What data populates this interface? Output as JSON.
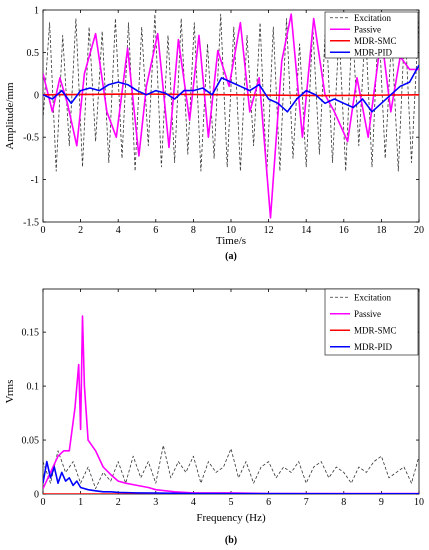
{
  "chart_data": [
    {
      "id": "a",
      "type": "line",
      "panel_label": "(a)",
      "xlabel": "Time/s",
      "ylabel": "Amplitude/mm",
      "xlim": [
        0,
        20
      ],
      "ylim": [
        -1.5,
        1
      ],
      "xticks": [
        "0",
        "2",
        "4",
        "6",
        "8",
        "10",
        "12",
        "14",
        "16",
        "18",
        "20"
      ],
      "yticks": [
        "1",
        "0.5",
        "0",
        "-0.5",
        "-1",
        "-1.5"
      ],
      "grid": false,
      "legend_position": "top-right",
      "colors": {
        "Excitation": "#333333",
        "Passive": "#ff00ff",
        "MDR-SMC": "#ff0000",
        "MDR-PID": "#0000ff"
      },
      "series": [
        {
          "name": "Excitation",
          "style": "dashed",
          "x": [
            0,
            0.35,
            0.7,
            1.05,
            1.4,
            1.75,
            2.1,
            2.45,
            2.8,
            3.15,
            3.5,
            3.85,
            4.2,
            4.55,
            4.9,
            5.25,
            5.6,
            5.95,
            6.3,
            6.65,
            7.0,
            7.35,
            7.7,
            8.05,
            8.4,
            8.75,
            9.1,
            9.45,
            9.8,
            10.15,
            10.5,
            10.85,
            11.2,
            11.55,
            11.9,
            12.25,
            12.6,
            12.95,
            13.3,
            13.65,
            14.0,
            14.35,
            14.7,
            15.05,
            15.4,
            15.75,
            16.1,
            16.45,
            16.8,
            17.15,
            17.5,
            17.85,
            18.2,
            18.55,
            18.9,
            19.25,
            19.6,
            20.0
          ],
          "values": [
            -0.3,
            0.85,
            -0.9,
            0.7,
            -0.6,
            0.9,
            -0.85,
            0.8,
            -0.55,
            0.75,
            -0.8,
            0.9,
            -0.75,
            0.85,
            -0.9,
            0.8,
            -0.6,
            0.95,
            -0.85,
            0.7,
            -0.8,
            0.9,
            -0.7,
            0.85,
            -0.9,
            0.6,
            -0.75,
            0.95,
            -0.85,
            0.8,
            -0.9,
            0.7,
            -0.6,
            0.85,
            -0.95,
            0.8,
            -0.9,
            0.9,
            -0.75,
            0.6,
            -0.85,
            0.8,
            -0.7,
            0.9,
            -0.8,
            0.75,
            -0.9,
            0.85,
            -0.6,
            0.8,
            -0.85,
            0.9,
            -0.75,
            0.7,
            -0.9,
            0.85,
            -0.8,
            0.95
          ]
        },
        {
          "name": "Passive",
          "style": "solid",
          "x": [
            0,
            0.5,
            0.9,
            1.3,
            1.8,
            2.2,
            2.8,
            3.4,
            3.9,
            4.5,
            5.1,
            5.5,
            6.1,
            6.7,
            7.2,
            7.8,
            8.3,
            8.8,
            9.3,
            9.9,
            10.5,
            11.0,
            11.5,
            12.1,
            12.7,
            13.2,
            13.8,
            14.4,
            15.0,
            15.5,
            16.2,
            16.7,
            17.3,
            18.0,
            18.5,
            19.0,
            19.5,
            20.0
          ],
          "values": [
            0.25,
            -0.2,
            0.2,
            -0.1,
            -0.6,
            0.25,
            0.72,
            -0.2,
            -0.5,
            0.55,
            -0.72,
            0.1,
            0.72,
            -0.62,
            0.65,
            -0.3,
            0.7,
            -0.5,
            0.52,
            0.1,
            0.85,
            -0.2,
            0.2,
            -1.45,
            0.4,
            0.95,
            -0.5,
            0.9,
            0.0,
            -0.2,
            -0.55,
            0.2,
            -0.5,
            0.7,
            -0.2,
            0.45,
            0.3,
            0.3
          ]
        },
        {
          "name": "MDR-SMC",
          "style": "solid",
          "x": [
            0,
            5,
            10,
            15,
            20
          ],
          "values": [
            0,
            0.01,
            0,
            -0.01,
            0
          ]
        },
        {
          "name": "MDR-PID",
          "style": "solid",
          "x": [
            0,
            0.5,
            1.0,
            1.5,
            2.0,
            2.5,
            3.0,
            3.5,
            4.0,
            4.5,
            5.0,
            5.5,
            6.0,
            6.5,
            7.0,
            7.5,
            8.0,
            8.5,
            9.0,
            9.5,
            10.0,
            10.5,
            11.0,
            11.5,
            12.0,
            12.5,
            13.0,
            13.5,
            14.0,
            14.5,
            15.0,
            15.5,
            16.0,
            16.5,
            17.0,
            17.5,
            18.0,
            18.5,
            19.0,
            19.5,
            20.0
          ],
          "values": [
            0,
            -0.05,
            0.05,
            -0.1,
            0.05,
            0.08,
            0.05,
            0.12,
            0.15,
            0.12,
            0.05,
            0.0,
            0.05,
            0.02,
            -0.05,
            0.05,
            0.05,
            0.08,
            0.0,
            0.2,
            0.15,
            0.1,
            0.05,
            0.12,
            -0.05,
            -0.1,
            -0.2,
            -0.05,
            0.05,
            0.0,
            -0.1,
            -0.05,
            -0.1,
            -0.15,
            -0.05,
            -0.2,
            -0.1,
            0.0,
            0.1,
            0.15,
            0.35
          ]
        }
      ]
    },
    {
      "id": "b",
      "type": "line",
      "panel_label": "(b)",
      "xlabel": "Frequency (Hz)",
      "ylabel": "Vrms",
      "xlim": [
        0,
        10
      ],
      "ylim": [
        0,
        0.19
      ],
      "xticks": [
        "0",
        "1",
        "2",
        "3",
        "4",
        "5",
        "6",
        "7",
        "8",
        "9",
        "10"
      ],
      "yticks": [
        "0.15",
        "0.1",
        "0.05",
        "0"
      ],
      "grid": false,
      "legend_position": "top-right",
      "colors": {
        "Excitation": "#333333",
        "Passive": "#ff00ff",
        "MDR-SMC": "#ff0000",
        "MDR-PID": "#0000ff"
      },
      "series": [
        {
          "name": "Excitation",
          "style": "dashed",
          "x": [
            0,
            0.2,
            0.4,
            0.6,
            0.8,
            1.0,
            1.2,
            1.4,
            1.6,
            1.8,
            2.0,
            2.2,
            2.4,
            2.6,
            2.8,
            3.0,
            3.2,
            3.4,
            3.6,
            3.8,
            4.0,
            4.2,
            4.4,
            4.6,
            4.8,
            5.0,
            5.2,
            5.4,
            5.6,
            5.8,
            6.0,
            6.2,
            6.4,
            6.6,
            6.8,
            7.0,
            7.2,
            7.4,
            7.6,
            7.8,
            8.0,
            8.2,
            8.4,
            8.6,
            8.8,
            9.0,
            9.2,
            9.4,
            9.6,
            9.8,
            10.0
          ],
          "values": [
            0.03,
            0.01,
            0.04,
            0.02,
            0.03,
            0.01,
            0.025,
            0.005,
            0.02,
            0.012,
            0.03,
            0.01,
            0.035,
            0.015,
            0.03,
            0.01,
            0.045,
            0.015,
            0.03,
            0.02,
            0.035,
            0.01,
            0.03,
            0.02,
            0.025,
            0.042,
            0.015,
            0.03,
            0.01,
            0.025,
            0.03,
            0.015,
            0.025,
            0.02,
            0.03,
            0.01,
            0.025,
            0.03,
            0.015,
            0.025,
            0.02,
            0.01,
            0.025,
            0.02,
            0.03,
            0.035,
            0.015,
            0.02,
            0.025,
            0.01,
            0.035
          ]
        },
        {
          "name": "Passive",
          "style": "solid",
          "x": [
            0,
            0.2,
            0.4,
            0.55,
            0.7,
            0.85,
            0.95,
            1.0,
            1.05,
            1.1,
            1.2,
            1.4,
            1.6,
            1.8,
            2.0,
            2.2,
            2.5,
            2.8,
            3.0,
            3.5,
            4.0,
            5.0,
            6.0,
            8.0,
            10.0
          ],
          "values": [
            0.005,
            0.02,
            0.035,
            0.04,
            0.04,
            0.08,
            0.12,
            0.06,
            0.165,
            0.1,
            0.05,
            0.04,
            0.025,
            0.018,
            0.012,
            0.01,
            0.008,
            0.006,
            0.004,
            0.002,
            0.001,
            0.001,
            0.0005,
            0.0005,
            0.0005
          ]
        },
        {
          "name": "MDR-SMC",
          "style": "solid",
          "x": [
            0,
            2,
            4,
            6,
            8,
            10
          ],
          "values": [
            0,
            0,
            0,
            0,
            0,
            0
          ]
        },
        {
          "name": "MDR-PID",
          "style": "solid",
          "x": [
            0,
            0.1,
            0.2,
            0.3,
            0.4,
            0.5,
            0.6,
            0.7,
            0.8,
            0.9,
            1.0,
            1.2,
            1.4,
            1.6,
            1.8,
            2.0,
            2.5,
            3.0,
            4.0,
            6.0,
            8.0,
            10.0
          ],
          "values": [
            0.01,
            0.03,
            0.015,
            0.025,
            0.01,
            0.02,
            0.012,
            0.015,
            0.008,
            0.012,
            0.006,
            0.004,
            0.003,
            0.002,
            0.002,
            0.0015,
            0.001,
            0.0008,
            0.0005,
            0.0003,
            0.0002,
            0.0002
          ]
        }
      ]
    }
  ]
}
